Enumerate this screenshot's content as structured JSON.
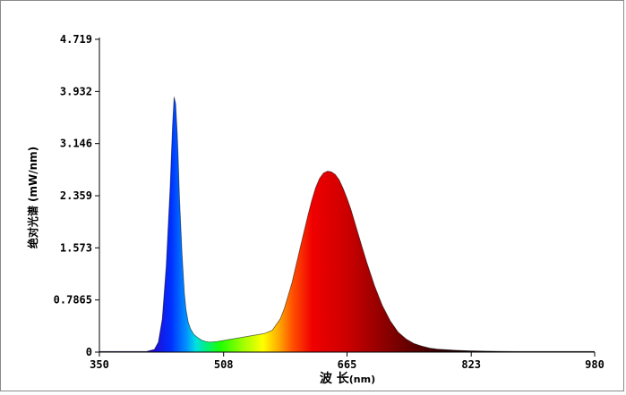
{
  "chart_data": {
    "type": "area",
    "xlabel_main": "波 长",
    "xlabel_unit": "(nm)",
    "ylabel": "绝对光谱 (mW/nm)",
    "xlim": [
      350,
      980
    ],
    "ylim": [
      0,
      4.719
    ],
    "x_ticks": [
      350,
      508,
      665,
      823,
      980
    ],
    "x_tick_labels": [
      "350",
      "508",
      "665",
      "823",
      "980"
    ],
    "y_ticks": [
      0,
      0.7865,
      1.573,
      2.359,
      3.146,
      3.932,
      4.719
    ],
    "y_tick_labels": [
      "0",
      "0.7865",
      "1.573",
      "2.359",
      "3.146",
      "3.932",
      "4.719"
    ],
    "fill": "wavelength-colored spectrum",
    "series": [
      {
        "x": [
          350,
          380,
          400,
          410,
          420,
          425,
          430,
          435,
          440,
          443,
          445,
          447,
          449,
          450,
          452,
          455,
          458,
          460,
          463,
          466,
          470,
          475,
          480,
          485,
          490,
          500,
          510,
          520,
          530,
          540,
          550,
          560,
          570,
          580,
          585,
          590,
          595,
          600,
          605,
          610,
          615,
          620,
          625,
          630,
          635,
          640,
          645,
          650,
          655,
          660,
          665,
          670,
          675,
          680,
          685,
          690,
          700,
          710,
          720,
          730,
          740,
          750,
          760,
          770,
          780,
          800,
          820,
          840,
          860,
          880,
          900,
          940,
          980
        ],
        "y": [
          0.01,
          0.01,
          0.01,
          0.01,
          0.04,
          0.15,
          0.5,
          1.3,
          2.5,
          3.4,
          3.85,
          3.75,
          3.3,
          3.0,
          2.3,
          1.5,
          0.9,
          0.65,
          0.45,
          0.35,
          0.27,
          0.22,
          0.18,
          0.16,
          0.15,
          0.16,
          0.18,
          0.2,
          0.22,
          0.24,
          0.26,
          0.28,
          0.33,
          0.5,
          0.65,
          0.85,
          1.05,
          1.3,
          1.55,
          1.8,
          2.05,
          2.28,
          2.48,
          2.62,
          2.7,
          2.73,
          2.72,
          2.68,
          2.6,
          2.47,
          2.32,
          2.15,
          1.95,
          1.75,
          1.55,
          1.36,
          1.0,
          0.7,
          0.47,
          0.3,
          0.2,
          0.13,
          0.09,
          0.06,
          0.045,
          0.03,
          0.02,
          0.015,
          0.012,
          0.01,
          0.01,
          0.01,
          0.01
        ]
      }
    ]
  }
}
